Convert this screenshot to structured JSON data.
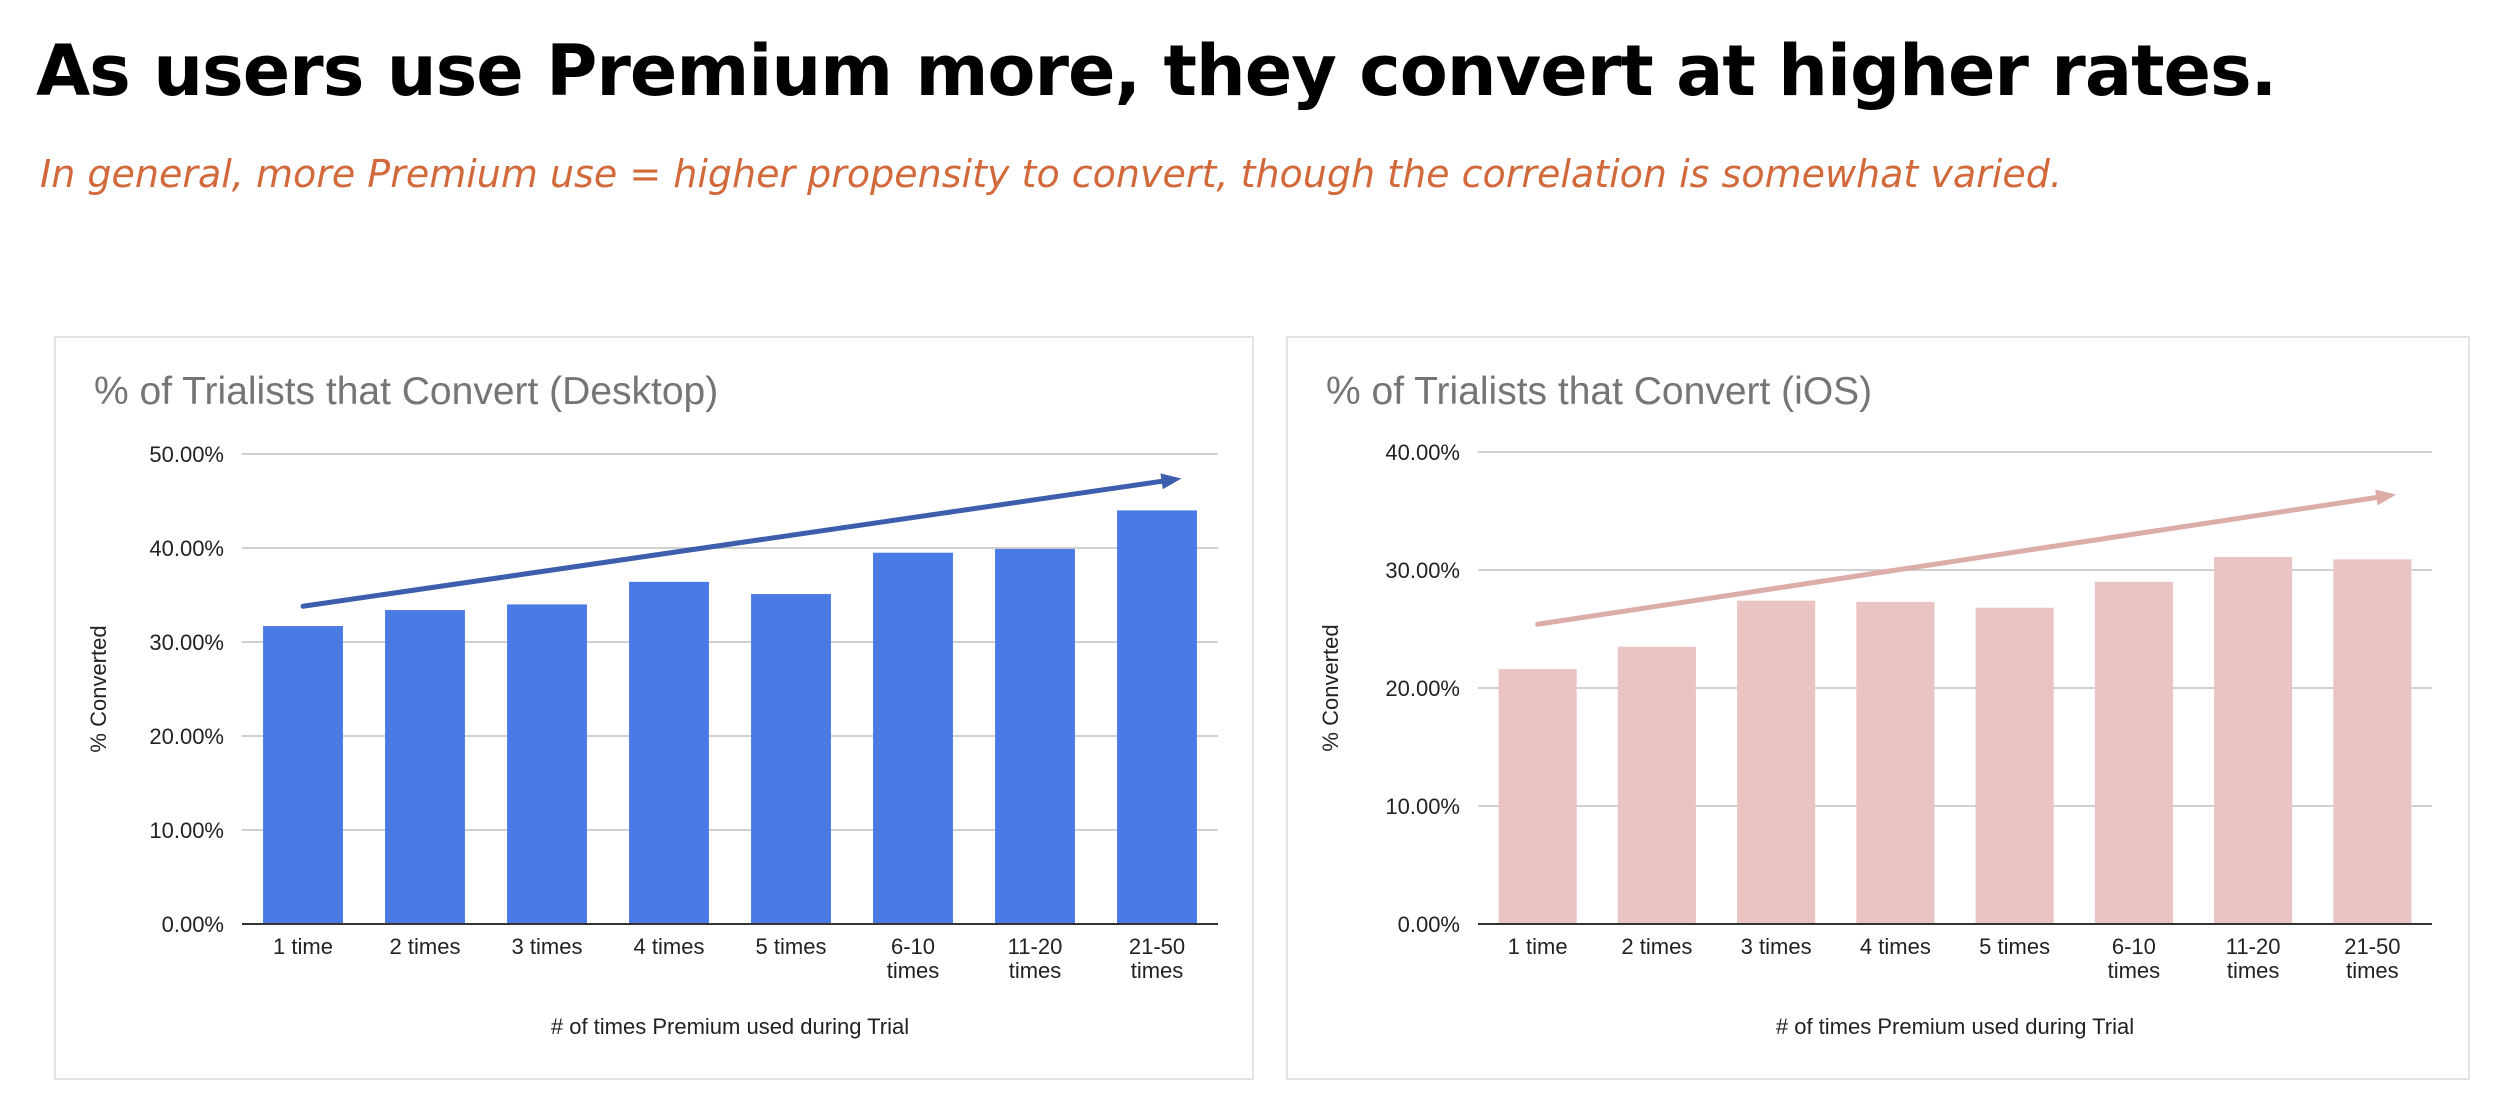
{
  "headline": "As users use Premium more, they convert at higher rates.",
  "subheadline": "In general, more Premium use = higher propensity to convert, though the correlation is somewhat varied.",
  "chart_data": [
    {
      "type": "bar",
      "title": "% of Trialists that Convert (Desktop)",
      "xlabel": "# of times Premium used during Trial",
      "ylabel": "% Converted",
      "categories": [
        "1 time",
        "2 times",
        "3 times",
        "4 times",
        "5 times",
        "6-10 times",
        "11-20 times",
        "21-50 times"
      ],
      "values": [
        31.7,
        33.4,
        34.0,
        36.4,
        35.1,
        39.5,
        39.9,
        44.0
      ],
      "ylim": [
        0,
        50
      ],
      "yticks": [
        "0.00%",
        "10.00%",
        "20.00%",
        "30.00%",
        "40.00%",
        "50.00%"
      ],
      "grid": true,
      "bar_color": "#4a7be5",
      "trend_arrow": {
        "color": "#3d5ead",
        "from": [
          1,
          33.8
        ],
        "to": [
          8.2,
          47.4
        ]
      }
    },
    {
      "type": "bar",
      "title": "% of Trialists that Convert (iOS)",
      "xlabel": "# of times Premium used during Trial",
      "ylabel": "% Converted",
      "categories": [
        "1 time",
        "2 times",
        "3 times",
        "4 times",
        "5 times",
        "6-10 times",
        "11-20 times",
        "21-50 times"
      ],
      "values": [
        21.6,
        23.5,
        27.4,
        27.3,
        26.8,
        29.0,
        31.1,
        30.9
      ],
      "ylim": [
        0,
        40
      ],
      "yticks": [
        "0.00%",
        "10.00%",
        "20.00%",
        "30.00%",
        "40.00%"
      ],
      "grid": true,
      "bar_color": "#e9c4c3",
      "trend_arrow": {
        "color": "#dcaca9",
        "from": [
          1,
          25.4
        ],
        "to": [
          8.2,
          36.4
        ]
      }
    }
  ]
}
